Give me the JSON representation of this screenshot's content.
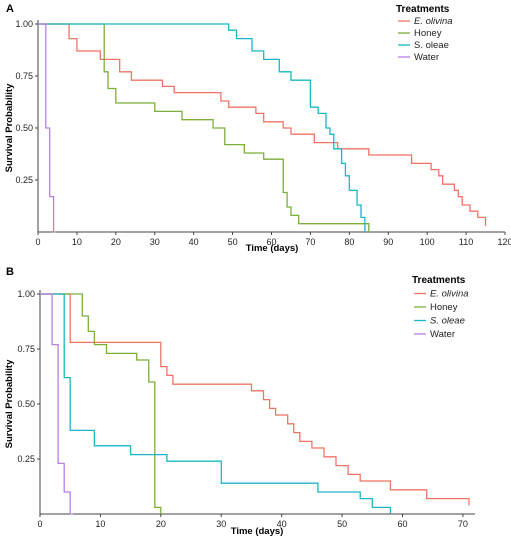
{
  "chart_data": [
    {
      "panel": "A",
      "type": "line",
      "step": true,
      "title": "",
      "xlabel": "Time (days)",
      "ylabel": "Survival Probability",
      "xlim": [
        0,
        120
      ],
      "ylim": [
        0,
        1
      ],
      "xticks": [
        0,
        10,
        20,
        30,
        40,
        50,
        60,
        70,
        80,
        90,
        100,
        110,
        120
      ],
      "yticks": [
        "1.00",
        "0.75",
        "0.50",
        "0.25"
      ],
      "grid": false,
      "legend": {
        "title": "Treatments",
        "position": "top-right"
      },
      "series": [
        {
          "name": "E. olivina",
          "italic": true,
          "color": "#f07466",
          "x": [
            0,
            8,
            10,
            16,
            21,
            24,
            32,
            35,
            47,
            49,
            56,
            58,
            63,
            65,
            71,
            77,
            85,
            96,
            101,
            103,
            104,
            107,
            108,
            109,
            111,
            113,
            115
          ],
          "y": [
            1.0,
            0.93,
            0.87,
            0.83,
            0.77,
            0.73,
            0.7,
            0.67,
            0.63,
            0.6,
            0.57,
            0.53,
            0.5,
            0.47,
            0.43,
            0.4,
            0.37,
            0.33,
            0.3,
            0.27,
            0.23,
            0.2,
            0.17,
            0.13,
            0.1,
            0.07,
            0.03
          ]
        },
        {
          "name": "Honey",
          "italic": false,
          "color": "#7cae3a",
          "x": [
            0,
            17,
            18,
            20,
            30,
            37,
            45,
            48,
            53,
            58,
            63,
            64,
            65,
            67,
            85
          ],
          "y": [
            1.0,
            0.77,
            0.69,
            0.62,
            0.58,
            0.54,
            0.5,
            0.42,
            0.38,
            0.35,
            0.19,
            0.12,
            0.08,
            0.04,
            0.0
          ]
        },
        {
          "name": "S. oleae",
          "italic": false,
          "color": "#1ab8c7",
          "x": [
            0,
            49,
            51,
            55,
            58,
            62,
            65,
            70,
            72,
            74,
            75,
            76,
            78,
            79,
            80,
            82,
            83,
            84
          ],
          "y": [
            1.0,
            0.97,
            0.93,
            0.87,
            0.83,
            0.77,
            0.73,
            0.6,
            0.57,
            0.5,
            0.47,
            0.4,
            0.33,
            0.27,
            0.2,
            0.13,
            0.07,
            0.0
          ]
        },
        {
          "name": "Water",
          "italic": false,
          "color": "#b97fe6",
          "x": [
            0,
            2,
            3,
            4,
            4.5
          ],
          "y": [
            1.0,
            0.5,
            0.17,
            0.0,
            0.0
          ]
        }
      ]
    },
    {
      "panel": "B",
      "type": "line",
      "step": true,
      "title": "",
      "xlabel": "Time (days)",
      "ylabel": "Survival Probability",
      "xlim": [
        0,
        72
      ],
      "ylim": [
        0,
        1
      ],
      "xticks": [
        0,
        10,
        20,
        30,
        40,
        50,
        60,
        70
      ],
      "yticks": [
        "1.00",
        "0.75",
        "0.50",
        "0.25"
      ],
      "grid": false,
      "legend": {
        "title": "Treatments",
        "position": "top-right"
      },
      "series": [
        {
          "name": "E. olivina",
          "italic": true,
          "color": "#f07466",
          "x": [
            0,
            5,
            20,
            21,
            22,
            35,
            37,
            38,
            39,
            41,
            42,
            43,
            45,
            47,
            49,
            51,
            53,
            58,
            64,
            71
          ],
          "y": [
            1.0,
            0.78,
            0.67,
            0.63,
            0.59,
            0.56,
            0.52,
            0.48,
            0.45,
            0.41,
            0.37,
            0.33,
            0.3,
            0.26,
            0.22,
            0.18,
            0.15,
            0.11,
            0.07,
            0.04
          ]
        },
        {
          "name": "Honey",
          "italic": false,
          "color": "#7cae3a",
          "x": [
            0,
            7,
            8,
            9,
            11,
            16,
            18,
            19,
            20
          ],
          "y": [
            1.0,
            0.9,
            0.83,
            0.77,
            0.73,
            0.7,
            0.6,
            0.03,
            0.0
          ]
        },
        {
          "name": "S. oleae",
          "italic": true,
          "color": "#1ab8c7",
          "x": [
            0,
            4,
            5,
            6,
            9,
            15,
            21,
            30,
            46,
            53,
            55,
            58
          ],
          "y": [
            1.0,
            0.62,
            0.38,
            0.38,
            0.31,
            0.27,
            0.24,
            0.14,
            0.1,
            0.07,
            0.03,
            0.0
          ]
        },
        {
          "name": "Water",
          "italic": false,
          "color": "#b97fe6",
          "x": [
            0,
            2,
            3,
            4,
            5,
            5.5
          ],
          "y": [
            1.0,
            0.77,
            0.23,
            0.1,
            0.0,
            0.0
          ]
        }
      ]
    }
  ]
}
